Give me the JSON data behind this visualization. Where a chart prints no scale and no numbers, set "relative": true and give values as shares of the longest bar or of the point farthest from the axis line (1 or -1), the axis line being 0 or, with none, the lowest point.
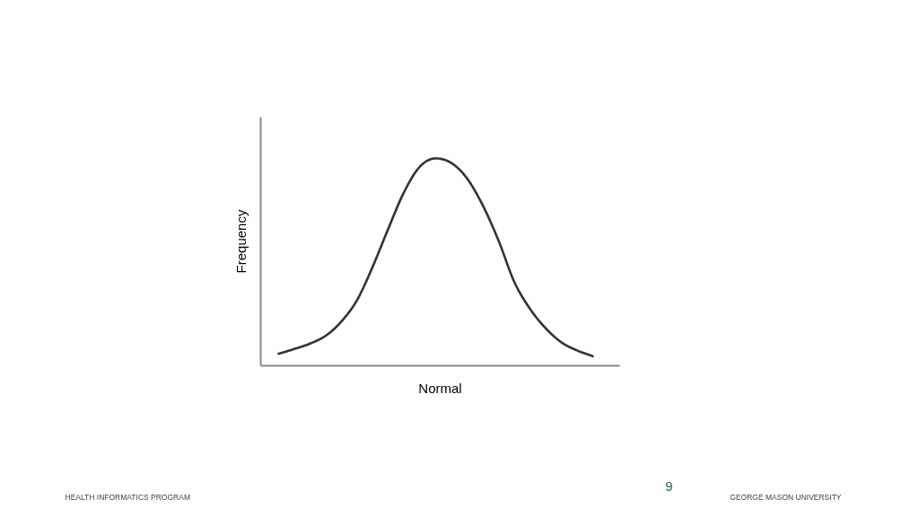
{
  "chart_data": {
    "type": "line",
    "relative": true,
    "xlabel": "Normal",
    "ylabel": "Frequency",
    "categories": [
      null,
      null,
      null,
      null,
      null,
      null,
      null,
      null,
      null,
      null,
      null,
      null,
      null,
      null,
      null,
      null,
      null,
      null,
      null,
      null,
      null
    ],
    "color": "#333333",
    "line_style": "solid",
    "values": [
      0.058,
      0.081,
      0.107,
      0.145,
      0.214,
      0.318,
      0.48,
      0.665,
      0.84,
      0.961,
      1,
      0.978,
      0.903,
      0.773,
      0.604,
      0.405,
      0.275,
      0.181,
      0.113,
      0.074,
      0.046
    ],
    "annotations": [
      "HEALTH INFORMATICS PROGRAM",
      "9",
      "GEORGE MASON UNIVERSITY"
    ]
  }
}
